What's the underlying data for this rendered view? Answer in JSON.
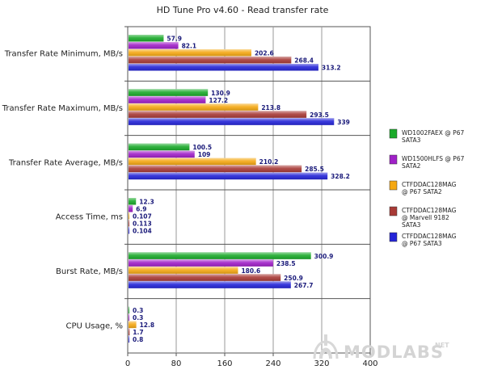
{
  "chart_data": {
    "type": "bar",
    "orientation": "horizontal",
    "title": "HD Tune Pro v4.60 - Read transfer rate",
    "categories": [
      "Transfer Rate Minimum, MB/s",
      "Transfer Rate Maximum, MB/s",
      "Transfer Rate Average, MB/s",
      "Access Time, ms",
      "Burst Rate, MB/s",
      "CPU Usage, %"
    ],
    "series": [
      {
        "name": "WD1002FAEX @ P67 SATA3",
        "legend_lines": [
          "WD1002FAEX @ P67",
          "SATA3"
        ],
        "color": "#1aaa2a",
        "values": [
          57.9,
          130.9,
          100.5,
          12.3,
          300.9,
          0.3
        ],
        "labels": [
          "57.9",
          "130.9",
          "100.5",
          "12.3",
          "300.9",
          "0.3"
        ]
      },
      {
        "name": "WD1500HLFS @ P67 SATA2",
        "legend_lines": [
          "WD1500HLFS @ P67",
          "SATA2"
        ],
        "color": "#a020c8",
        "values": [
          82.1,
          127.2,
          109,
          6.9,
          238.5,
          0.3
        ],
        "labels": [
          "82.1",
          "127.2",
          "109",
          "6.9",
          "238.5",
          "0.3"
        ]
      },
      {
        "name": "CTFDDAC128MAG @ P67 SATA2",
        "legend_lines": [
          "CTFDDAC128MAG",
          "@ P67 SATA2"
        ],
        "color": "#f5a812",
        "values": [
          202.6,
          213.8,
          210.2,
          0.107,
          180.6,
          12.8
        ],
        "labels": [
          "202.6",
          "213.8",
          "210.2",
          "0.107",
          "180.6",
          "12.8"
        ]
      },
      {
        "name": "CTFDDAC128MAG @ Marvell 9182 SATA3",
        "legend_lines": [
          "CTFDDAC128MAG",
          "@ Marvell 9182",
          "SATA3"
        ],
        "color": "#a83a36",
        "values": [
          268.4,
          293.5,
          285.5,
          0.113,
          250.9,
          1.7
        ],
        "labels": [
          "268.4",
          "293.5",
          "285.5",
          "0.113",
          "250.9",
          "1.7"
        ]
      },
      {
        "name": "CTFDDAC128MAG @ P67 SATA3",
        "legend_lines": [
          "CTFDDAC128MAG",
          "@ P67 SATA3"
        ],
        "color": "#2424d8",
        "values": [
          313.2,
          339,
          328.2,
          0.104,
          267.7,
          0.8
        ],
        "labels": [
          "313.2",
          "339",
          "328.2",
          "0.104",
          "267.7",
          "0.8"
        ]
      }
    ],
    "xlim": [
      0,
      400
    ],
    "xticks": [
      "0",
      "80",
      "160",
      "240",
      "320",
      "400"
    ],
    "grid": true,
    "legend_position": "right"
  },
  "watermark": {
    "text": "MODLABS",
    "superscript": "NET"
  }
}
